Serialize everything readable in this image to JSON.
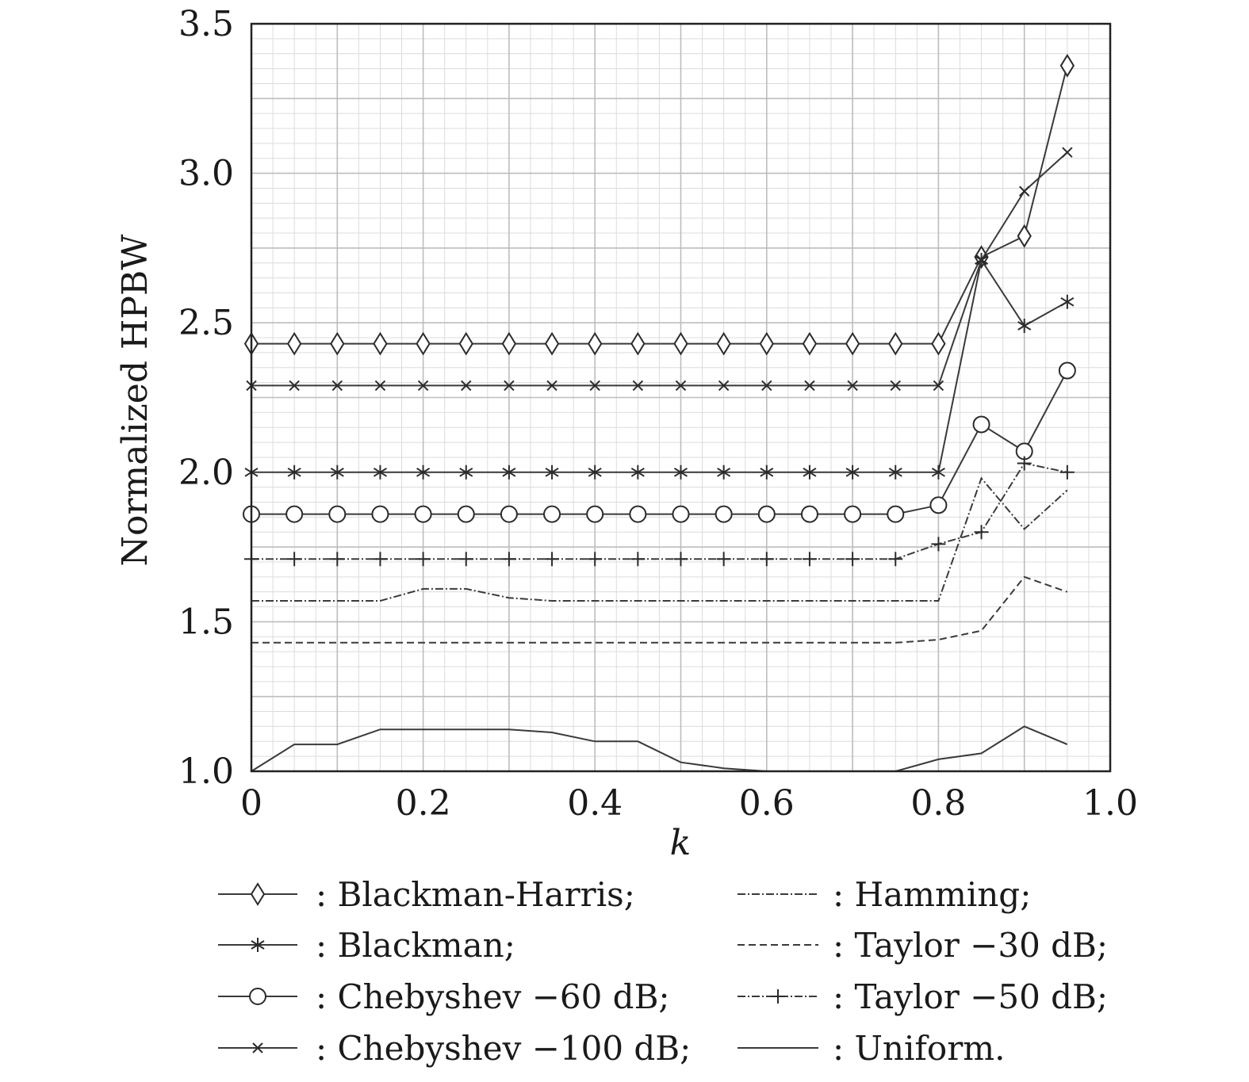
{
  "chart_data": {
    "type": "line",
    "title": "",
    "xlabel": "k",
    "ylabel": "Normalized HPBW",
    "xlim": [
      0,
      1.0
    ],
    "ylim": [
      1.0,
      3.5
    ],
    "grid": true,
    "x_ticks": [
      0,
      0.2,
      0.4,
      0.6,
      0.8,
      1.0
    ],
    "x_tick_labels": [
      "0",
      "0.2",
      "0.4",
      "0.6",
      "0.8",
      "1.0"
    ],
    "y_ticks": [
      1.0,
      1.5,
      2.0,
      2.5,
      3.0,
      3.5
    ],
    "y_tick_labels": [
      "1.0",
      "1.5",
      "2.0",
      "2.5",
      "3.0",
      "3.5"
    ],
    "x": [
      0,
      0.05,
      0.1,
      0.15,
      0.2,
      0.25,
      0.3,
      0.35,
      0.4,
      0.45,
      0.5,
      0.55,
      0.6,
      0.65,
      0.7,
      0.75,
      0.8,
      0.85,
      0.9,
      0.95
    ],
    "series": [
      {
        "name": "Blackman-Harris",
        "legend": ": Blackman-Harris;",
        "marker": "diamond",
        "dash": "solid",
        "values": [
          2.43,
          2.43,
          2.43,
          2.43,
          2.43,
          2.43,
          2.43,
          2.43,
          2.43,
          2.43,
          2.43,
          2.43,
          2.43,
          2.43,
          2.43,
          2.43,
          2.43,
          2.72,
          2.79,
          3.36
        ]
      },
      {
        "name": "Blackman",
        "legend": ": Blackman;",
        "marker": "asterisk",
        "dash": "solid",
        "values": [
          2.0,
          2.0,
          2.0,
          2.0,
          2.0,
          2.0,
          2.0,
          2.0,
          2.0,
          2.0,
          2.0,
          2.0,
          2.0,
          2.0,
          2.0,
          2.0,
          2.0,
          2.71,
          2.49,
          2.57
        ]
      },
      {
        "name": "Chebyshev -60 dB",
        "legend": ": Chebyshev −60 dB;",
        "marker": "circle",
        "dash": "solid",
        "values": [
          1.86,
          1.86,
          1.86,
          1.86,
          1.86,
          1.86,
          1.86,
          1.86,
          1.86,
          1.86,
          1.86,
          1.86,
          1.86,
          1.86,
          1.86,
          1.86,
          1.89,
          2.16,
          2.07,
          2.34
        ]
      },
      {
        "name": "Chebyshev -100 dB",
        "legend": ": Chebyshev −100 dB;",
        "marker": "x",
        "dash": "solid",
        "values": [
          2.29,
          2.29,
          2.29,
          2.29,
          2.29,
          2.29,
          2.29,
          2.29,
          2.29,
          2.29,
          2.29,
          2.29,
          2.29,
          2.29,
          2.29,
          2.29,
          2.29,
          2.71,
          2.94,
          3.07
        ]
      },
      {
        "name": "Hamming",
        "legend": ": Hamming;",
        "marker": "none",
        "dash": "dashdot",
        "values": [
          1.57,
          1.57,
          1.57,
          1.57,
          1.61,
          1.61,
          1.58,
          1.57,
          1.57,
          1.57,
          1.57,
          1.57,
          1.57,
          1.57,
          1.57,
          1.57,
          1.57,
          1.98,
          1.81,
          1.94
        ]
      },
      {
        "name": "Taylor -30 dB",
        "legend": ": Taylor −30 dB;",
        "marker": "none",
        "dash": "dashed",
        "values": [
          1.43,
          1.43,
          1.43,
          1.43,
          1.43,
          1.43,
          1.43,
          1.43,
          1.43,
          1.43,
          1.43,
          1.43,
          1.43,
          1.43,
          1.43,
          1.43,
          1.44,
          1.47,
          1.65,
          1.6
        ]
      },
      {
        "name": "Taylor -50 dB",
        "legend": ": Taylor −50 dB;",
        "marker": "plus",
        "dash": "dashdot",
        "values": [
          1.71,
          1.71,
          1.71,
          1.71,
          1.71,
          1.71,
          1.71,
          1.71,
          1.71,
          1.71,
          1.71,
          1.71,
          1.71,
          1.71,
          1.71,
          1.71,
          1.76,
          1.8,
          2.03,
          2.0
        ]
      },
      {
        "name": "Uniform",
        "legend": ": Uniform.",
        "marker": "none",
        "dash": "solid",
        "values": [
          1.0,
          1.09,
          1.09,
          1.14,
          1.14,
          1.14,
          1.14,
          1.13,
          1.1,
          1.1,
          1.03,
          1.01,
          1.0,
          1.0,
          1.0,
          1.0,
          1.04,
          1.06,
          1.15,
          1.09
        ]
      }
    ]
  }
}
